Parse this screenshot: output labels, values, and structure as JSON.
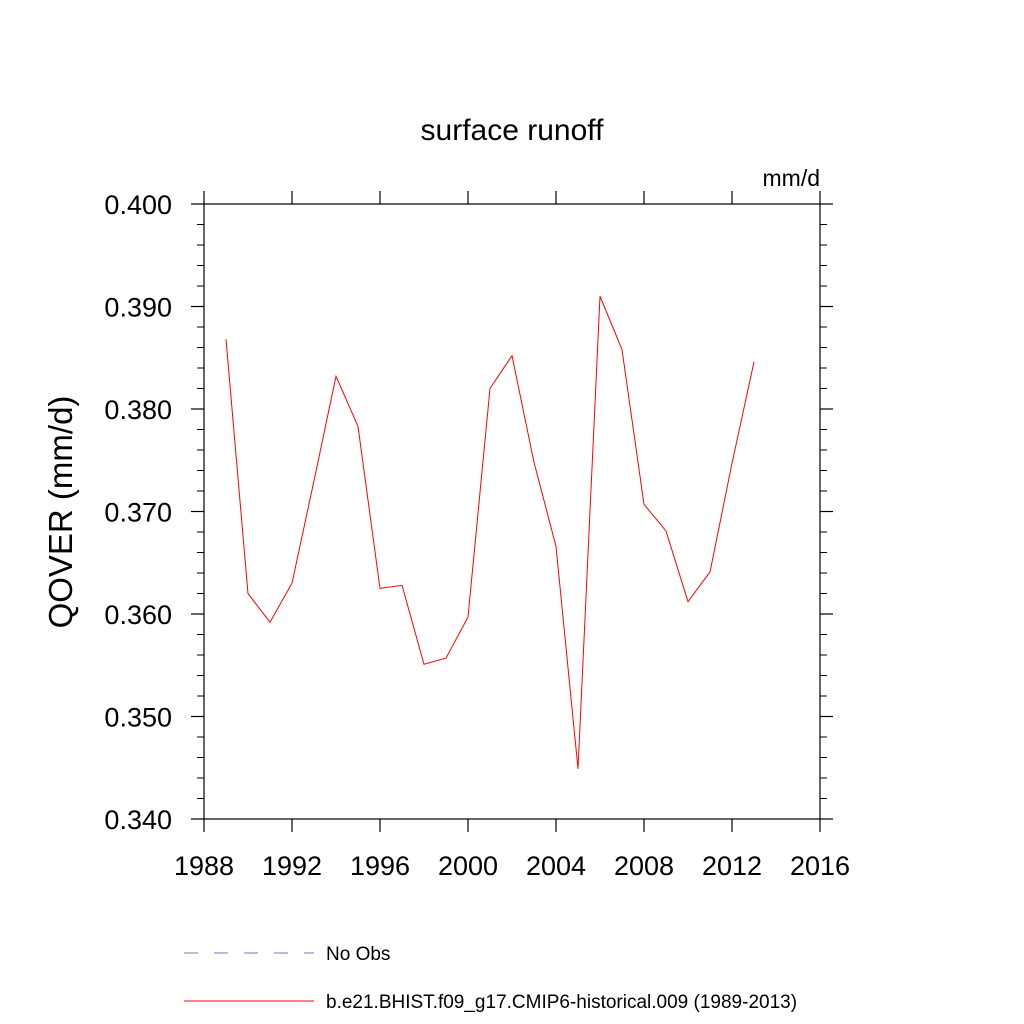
{
  "chart_data": {
    "type": "line",
    "title": "surface runoff",
    "units_label": "mm/d",
    "xlabel": "",
    "ylabel": "QOVER  (mm/d)",
    "xlim": [
      1988,
      2016
    ],
    "ylim": [
      0.34,
      0.4
    ],
    "x_ticks": [
      1988,
      1992,
      1996,
      2000,
      2004,
      2008,
      2012,
      2016
    ],
    "x_tick_labels": [
      "1988",
      "1992",
      "1996",
      "2000",
      "2004",
      "2008",
      "2012",
      "2016"
    ],
    "y_ticks": [
      0.34,
      0.35,
      0.36,
      0.37,
      0.38,
      0.39,
      0.4
    ],
    "y_tick_labels": [
      "0.340",
      "0.350",
      "0.360",
      "0.370",
      "0.380",
      "0.390",
      "0.400"
    ],
    "grid": false,
    "legend_position": "bottom",
    "series": [
      {
        "name": "b.e21.BHIST.f09_g17.CMIP6-historical.009 (1989-2013)",
        "color": "#ff0000",
        "style": "solid",
        "x": [
          1989,
          1990,
          1991,
          1992,
          1993,
          1994,
          1995,
          1996,
          1997,
          1998,
          1999,
          2000,
          2001,
          2002,
          2003,
          2004,
          2005,
          2006,
          2007,
          2008,
          2009,
          2010,
          2011,
          2012,
          2013
        ],
        "values": [
          0.3868,
          0.362,
          0.3592,
          0.363,
          0.373,
          0.3832,
          0.3783,
          0.3625,
          0.3628,
          0.3551,
          0.3557,
          0.3597,
          0.382,
          0.3852,
          0.3748,
          0.3666,
          0.3449,
          0.391,
          0.3858,
          0.3707,
          0.3681,
          0.3612,
          0.3641,
          0.3747,
          0.3846
        ]
      }
    ],
    "legend": [
      {
        "label": "No Obs",
        "color": "#7b74c2",
        "style": "dashed"
      },
      {
        "label": "b.e21.BHIST.f09_g17.CMIP6-historical.009 (1989-2013)",
        "color": "#ff0000",
        "style": "solid"
      }
    ]
  }
}
